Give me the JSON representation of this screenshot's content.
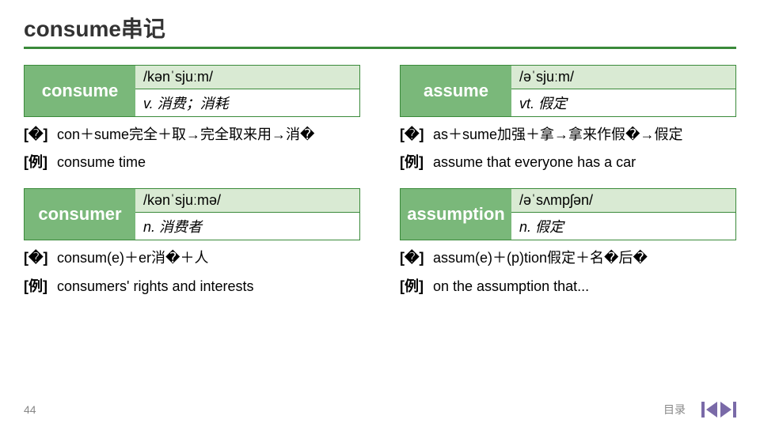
{
  "title": "consume串记",
  "entries": [
    {
      "word": "consume",
      "ipa": "/kənˈsjuːm/",
      "meaning": "v. 消费；消耗",
      "etym_label": "[�]",
      "etym": "con＋sume完全＋取→完全取来用→消�",
      "ex_label": "[例]",
      "ex": "consume time"
    },
    {
      "word": "assume",
      "ipa": "/əˈsjuːm/",
      "meaning": "vt. 假定",
      "etym_label": "[�]",
      "etym": "as＋sume加强＋拿→拿来作假�→假定",
      "ex_label": "[例]",
      "ex": "assume that everyone has a car"
    },
    {
      "word": "consumer",
      "ipa": "/kənˈsjuːmə/",
      "meaning": "n. 消费者",
      "etym_label": "[�]",
      "etym": "consum(e)＋er消�＋人",
      "ex_label": "[例]",
      "ex": "consumers' rights and interests"
    },
    {
      "word": "assumption",
      "ipa": "/əˈsʌmpʃən/",
      "meaning": "n. 假定",
      "etym_label": "[�]",
      "etym": "assum(e)＋(p)tion假定＋名�后�",
      "ex_label": "[例]",
      "ex": "on the assumption that..."
    }
  ],
  "footer": {
    "page": "44",
    "toc": "目录"
  },
  "colors": {
    "accent": "#3a8a3a",
    "cell_bg": "#7ab87a",
    "ipa_bg": "#d9ead3",
    "nav": "#7a6aa8"
  }
}
